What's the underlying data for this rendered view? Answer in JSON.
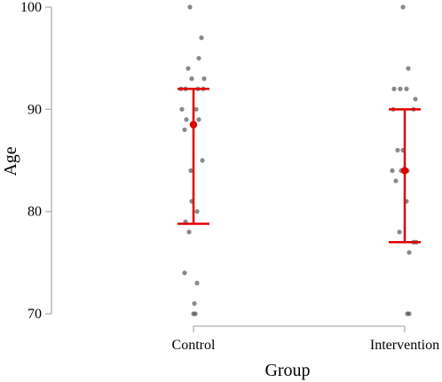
{
  "chart_data": {
    "type": "scatter",
    "title": "",
    "xlabel": "Group",
    "ylabel": "Age",
    "categories": [
      "Control",
      "Intervention"
    ],
    "ylim": [
      70,
      100
    ],
    "yticks": [
      70,
      80,
      90,
      100
    ],
    "grid": false,
    "colors": {
      "points": "#555555",
      "summary": "#e00000",
      "axis": "#b0b0b0"
    },
    "groups": [
      {
        "name": "Control",
        "mean": 88.5,
        "lower": 78.8,
        "upper": 92,
        "points": [
          {
            "x": -0.04,
            "y": 100
          },
          {
            "x": 0.09,
            "y": 97
          },
          {
            "x": 0.06,
            "y": 95
          },
          {
            "x": -0.06,
            "y": 94
          },
          {
            "x": -0.02,
            "y": 93
          },
          {
            "x": 0.12,
            "y": 93
          },
          {
            "x": -0.14,
            "y": 92
          },
          {
            "x": -0.09,
            "y": 92
          },
          {
            "x": 0.05,
            "y": 92
          },
          {
            "x": 0.11,
            "y": 92
          },
          {
            "x": -0.13,
            "y": 90
          },
          {
            "x": 0.03,
            "y": 90
          },
          {
            "x": -0.08,
            "y": 89
          },
          {
            "x": 0.06,
            "y": 89
          },
          {
            "x": -0.1,
            "y": 88
          },
          {
            "x": 0.1,
            "y": 85
          },
          {
            "x": -0.03,
            "y": 84
          },
          {
            "x": -0.02,
            "y": 81
          },
          {
            "x": 0.04,
            "y": 80
          },
          {
            "x": -0.09,
            "y": 79
          },
          {
            "x": -0.05,
            "y": 78
          },
          {
            "x": -0.1,
            "y": 74
          },
          {
            "x": 0.04,
            "y": 73
          },
          {
            "x": 0.01,
            "y": 71
          },
          {
            "x": 0.0,
            "y": 70
          },
          {
            "x": 0.02,
            "y": 70
          }
        ]
      },
      {
        "name": "Intervention",
        "mean": 84,
        "lower": 77,
        "upper": 90,
        "points": [
          {
            "x": -0.02,
            "y": 100
          },
          {
            "x": 0.04,
            "y": 94
          },
          {
            "x": -0.12,
            "y": 92
          },
          {
            "x": -0.05,
            "y": 92
          },
          {
            "x": 0.02,
            "y": 92
          },
          {
            "x": 0.12,
            "y": 91
          },
          {
            "x": -0.13,
            "y": 90
          },
          {
            "x": 0.1,
            "y": 90
          },
          {
            "x": -0.08,
            "y": 86
          },
          {
            "x": -0.02,
            "y": 86
          },
          {
            "x": -0.14,
            "y": 84
          },
          {
            "x": -0.04,
            "y": 84
          },
          {
            "x": 0.03,
            "y": 84
          },
          {
            "x": -0.1,
            "y": 83
          },
          {
            "x": 0.02,
            "y": 81
          },
          {
            "x": -0.06,
            "y": 78
          },
          {
            "x": 0.1,
            "y": 77
          },
          {
            "x": 0.13,
            "y": 77
          },
          {
            "x": 0.05,
            "y": 76
          },
          {
            "x": 0.03,
            "y": 70
          },
          {
            "x": 0.05,
            "y": 70
          }
        ]
      }
    ]
  }
}
